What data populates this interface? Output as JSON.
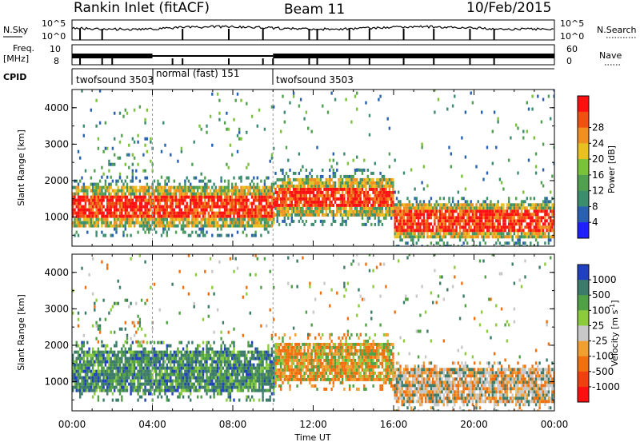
{
  "header": {
    "station": "Rankin Inlet (fitACF)",
    "beam": "Beam 11",
    "date": "10/Feb/2015"
  },
  "top_panels": {
    "nsky_label": "N.Sky",
    "nsky_ticks": [
      "10^5",
      "10^0"
    ],
    "nsearch_label": "N.Search",
    "nsearch_ticks": [
      "10^5",
      "10^0"
    ],
    "freq_label_1": "Freq.",
    "freq_label_2": "[MHz]",
    "freq_ticks": [
      "10",
      "8"
    ],
    "nave_label": "Nave",
    "nave_ticks": [
      "60",
      "0"
    ],
    "cpid_label": "CPID",
    "cpid_segments": [
      {
        "label": "twofsound 3503",
        "start_hour": 0.0,
        "end_hour": 4.0
      },
      {
        "label": "normal (fast) 151",
        "start_hour": 4.0,
        "end_hour": 10.0
      },
      {
        "label": "twofsound 3503",
        "start_hour": 10.0,
        "end_hour": 24.0
      }
    ]
  },
  "chart_data": [
    {
      "type": "heatmap",
      "quantity": "power",
      "xlabel": "",
      "ylabel": "Slant Range [km]",
      "xlim": [
        0,
        24
      ],
      "ylim": [
        200,
        4500
      ],
      "yticks": [
        "1000",
        "2000",
        "3000",
        "4000"
      ],
      "colorbar": {
        "label": "Power [dB]",
        "ticks": [
          "4",
          "8",
          "12",
          "16",
          "20",
          "24",
          "28"
        ],
        "colors": [
          "#2020ff",
          "#2a60b0",
          "#3c8c6e",
          "#50a050",
          "#7ac23a",
          "#e8c020",
          "#f09020",
          "#f05010",
          "#ff1010"
        ]
      },
      "bands": [
        {
          "start_hour": 0.0,
          "end_hour": 10.0,
          "min_km": 700,
          "max_km": 1800,
          "level": "strong"
        },
        {
          "start_hour": 10.0,
          "end_hour": 16.0,
          "min_km": 1000,
          "max_km": 2000,
          "level": "strong"
        },
        {
          "start_hour": 16.0,
          "end_hour": 24.0,
          "min_km": 400,
          "max_km": 1300,
          "level": "strong"
        },
        {
          "start_hour": 1.0,
          "end_hour": 4.0,
          "min_km": 2000,
          "max_km": 3200,
          "level": "weak"
        }
      ]
    },
    {
      "type": "heatmap",
      "quantity": "velocity",
      "xlabel": "Time UT",
      "ylabel": "Slant Range [km]",
      "xlim": [
        0,
        24
      ],
      "ylim": [
        200,
        4500
      ],
      "xticks": [
        "00:00",
        "04:00",
        "08:00",
        "12:00",
        "16:00",
        "20:00",
        "00:00"
      ],
      "yticks": [
        "1000",
        "2000",
        "3000",
        "4000"
      ],
      "colorbar": {
        "label": "Velocity [m s^-1]",
        "ticks": [
          "1000",
          "500",
          "100",
          "25",
          "-25",
          "-100",
          "-500",
          "-1000"
        ],
        "colors": [
          "#2040c0",
          "#3c7a6a",
          "#50a046",
          "#8ccc3c",
          "#c8c8c8",
          "#f0a030",
          "#f07010",
          "#f04010",
          "#ff1010"
        ]
      }
    }
  ]
}
